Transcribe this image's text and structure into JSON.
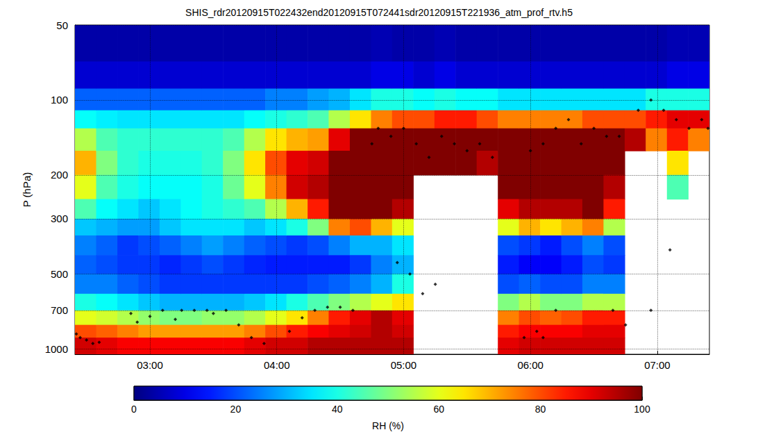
{
  "chart_data": {
    "type": "heatmap",
    "title": "SHIS_rdr20120915T022432end20120915T072441sdr20120915T221936_atm_prof_rtv.h5",
    "y_label": "P (hPa)",
    "colorbar_label": "RH (%)",
    "xlim": [
      2.409,
      7.411
    ],
    "xticks": [
      {
        "value": 3,
        "label": "03:00"
      },
      {
        "value": 4,
        "label": "04:00"
      },
      {
        "value": 5,
        "label": "05:00"
      },
      {
        "value": 6,
        "label": "06:00"
      },
      {
        "value": 7,
        "label": "07:00"
      }
    ],
    "ylim": [
      50,
      1050
    ],
    "yticks": [
      50,
      100,
      200,
      300,
      500,
      700,
      1000
    ],
    "log": "y",
    "grid": true,
    "x_edges": [
      2.409,
      2.576,
      2.743,
      2.909,
      3.076,
      3.243,
      3.409,
      3.576,
      3.743,
      3.909,
      4.076,
      4.243,
      4.409,
      4.576,
      4.743,
      4.909,
      5.076,
      5.243,
      5.409,
      5.576,
      5.743,
      5.909,
      6.076,
      6.243,
      6.409,
      6.576,
      6.743,
      6.909,
      7.076,
      7.243,
      7.411
    ],
    "p_edges": [
      50,
      70,
      90,
      110,
      130,
      160,
      200,
      250,
      300,
      350,
      420,
      500,
      600,
      700,
      800,
      900,
      1050
    ],
    "rh": [
      [
        4,
        8,
        22,
        38,
        55,
        70,
        60,
        45,
        32,
        25,
        22,
        25,
        40,
        60,
        80,
        92
      ],
      [
        4,
        8,
        22,
        36,
        45,
        50,
        45,
        38,
        30,
        22,
        20,
        25,
        38,
        58,
        78,
        90
      ],
      [
        4,
        8,
        22,
        35,
        42,
        42,
        40,
        35,
        28,
        18,
        18,
        22,
        35,
        55,
        75,
        88
      ],
      [
        4,
        8,
        22,
        35,
        42,
        40,
        38,
        32,
        28,
        20,
        18,
        20,
        32,
        52,
        72,
        88
      ],
      [
        4,
        8,
        22,
        35,
        42,
        40,
        38,
        35,
        32,
        22,
        16,
        18,
        30,
        50,
        72,
        88
      ],
      [
        4,
        8,
        22,
        35,
        42,
        40,
        38,
        38,
        35,
        25,
        18,
        18,
        30,
        50,
        72,
        88
      ],
      [
        4,
        8,
        22,
        35,
        42,
        42,
        40,
        40,
        35,
        28,
        20,
        18,
        30,
        52,
        72,
        88
      ],
      [
        4,
        8,
        22,
        35,
        45,
        50,
        48,
        42,
        35,
        25,
        18,
        18,
        30,
        52,
        72,
        88
      ],
      [
        4,
        8,
        22,
        38,
        55,
        65,
        60,
        45,
        32,
        22,
        16,
        18,
        32,
        55,
        75,
        90
      ],
      [
        4,
        8,
        25,
        40,
        65,
        80,
        75,
        55,
        35,
        20,
        15,
        18,
        35,
        60,
        80,
        92
      ],
      [
        4,
        8,
        25,
        42,
        70,
        90,
        92,
        70,
        40,
        18,
        15,
        18,
        40,
        65,
        85,
        92
      ],
      [
        4,
        8,
        28,
        45,
        72,
        92,
        95,
        85,
        50,
        20,
        15,
        20,
        45,
        75,
        88,
        95
      ],
      [
        4,
        8,
        30,
        55,
        90,
        100,
        100,
        100,
        75,
        25,
        15,
        22,
        50,
        85,
        90,
        95
      ],
      [
        4,
        8,
        35,
        65,
        100,
        100,
        100,
        100,
        80,
        30,
        18,
        25,
        55,
        90,
        92,
        95
      ],
      [
        5,
        10,
        40,
        75,
        100,
        100,
        100,
        100,
        70,
        30,
        25,
        30,
        60,
        95,
        95,
        95
      ],
      [
        4,
        10,
        40,
        80,
        100,
        100,
        100,
        95,
        60,
        35,
        30,
        40,
        65,
        90,
        92,
        95
      ],
      [
        4,
        8,
        38,
        80,
        100,
        100,
        null,
        null,
        null,
        null,
        null,
        null,
        null,
        null,
        null,
        null
      ],
      [
        5,
        10,
        40,
        85,
        100,
        100,
        null,
        null,
        null,
        null,
        null,
        null,
        null,
        null,
        null,
        null
      ],
      [
        4,
        8,
        38,
        85,
        100,
        100,
        null,
        null,
        null,
        null,
        null,
        null,
        null,
        null,
        null,
        null
      ],
      [
        4,
        8,
        38,
        80,
        100,
        95,
        null,
        null,
        null,
        null,
        null,
        null,
        null,
        null,
        null,
        null
      ],
      [
        4,
        8,
        35,
        75,
        100,
        100,
        100,
        90,
        60,
        20,
        15,
        20,
        50,
        75,
        85,
        90
      ],
      [
        4,
        8,
        35,
        75,
        100,
        100,
        100,
        95,
        70,
        18,
        12,
        22,
        55,
        80,
        88,
        92
      ],
      [
        4,
        8,
        35,
        75,
        100,
        100,
        100,
        95,
        65,
        15,
        12,
        20,
        50,
        78,
        88,
        92
      ],
      [
        4,
        8,
        35,
        75,
        100,
        100,
        100,
        95,
        70,
        20,
        15,
        20,
        50,
        80,
        88,
        92
      ],
      [
        4,
        8,
        35,
        80,
        100,
        100,
        100,
        100,
        75,
        25,
        20,
        25,
        55,
        85,
        90,
        92
      ],
      [
        4,
        8,
        35,
        80,
        100,
        100,
        95,
        85,
        55,
        20,
        18,
        25,
        55,
        85,
        90,
        92
      ],
      [
        4,
        8,
        35,
        80,
        95,
        null,
        null,
        null,
        null,
        null,
        null,
        null,
        null,
        null,
        null,
        null
      ],
      [
        4,
        8,
        40,
        85,
        75,
        null,
        null,
        null,
        null,
        null,
        null,
        null,
        null,
        null,
        null,
        null
      ],
      [
        5,
        10,
        40,
        90,
        85,
        65,
        45,
        null,
        null,
        null,
        null,
        null,
        null,
        null,
        null,
        null
      ],
      [
        5,
        10,
        40,
        90,
        75,
        null,
        null,
        null,
        null,
        null,
        null,
        null,
        null,
        null,
        null,
        null
      ]
    ],
    "cbar_lim": [
      0,
      100
    ],
    "cbar_ticks": [
      0,
      20,
      40,
      60,
      80,
      100
    ],
    "points": {
      "color": "#000000",
      "marker": "diamond",
      "x": [
        2.42,
        2.45,
        2.5,
        2.55,
        2.6,
        2.85,
        2.9,
        3.0,
        3.1,
        3.2,
        3.25,
        3.35,
        3.45,
        3.5,
        3.6,
        3.7,
        3.8,
        3.9,
        4.1,
        4.2,
        4.3,
        4.4,
        4.5,
        4.6,
        4.75,
        4.8,
        4.9,
        5.0,
        5.1,
        5.2,
        5.3,
        5.4,
        5.5,
        5.6,
        5.7,
        4.95,
        5.05,
        5.15,
        5.25,
        5.95,
        6.05,
        6.1,
        6.2,
        6.0,
        6.1,
        6.2,
        6.3,
        6.4,
        6.5,
        6.6,
        6.7,
        6.85,
        6.95,
        7.05,
        7.15,
        7.25,
        7.35,
        7.4,
        6.65,
        6.75,
        6.95,
        7.1
      ],
      "p": [
        870,
        900,
        920,
        950,
        940,
        720,
        780,
        740,
        700,
        760,
        700,
        700,
        700,
        720,
        700,
        800,
        900,
        950,
        850,
        750,
        700,
        680,
        680,
        700,
        150,
        130,
        140,
        130,
        150,
        170,
        140,
        150,
        160,
        150,
        170,
        450,
        500,
        600,
        550,
        900,
        850,
        900,
        700,
        160,
        150,
        130,
        120,
        150,
        130,
        140,
        140,
        110,
        100,
        110,
        120,
        130,
        120,
        130,
        700,
        800,
        700,
        400
      ]
    }
  }
}
